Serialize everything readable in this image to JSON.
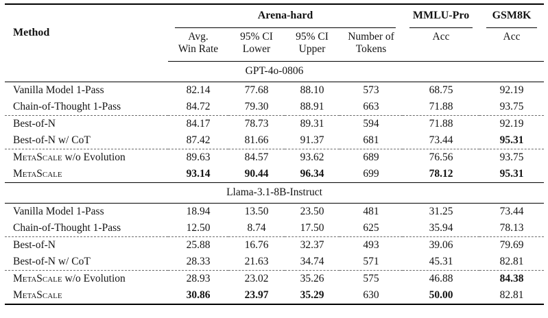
{
  "table": {
    "header": {
      "method_label": "Method",
      "groups": [
        {
          "label": "Arena-hard",
          "colspan": 4
        },
        {
          "label": "MMLU-Pro",
          "colspan": 1
        },
        {
          "label": "GSM8K",
          "colspan": 1
        }
      ],
      "subcols": [
        {
          "line1": "Avg.",
          "line2": "Win Rate"
        },
        {
          "line1": "95% CI",
          "line2": "Lower"
        },
        {
          "line1": "95% CI",
          "line2": "Upper"
        },
        {
          "line1": "Number of",
          "line2": "Tokens"
        },
        {
          "line1": "Acc",
          "line2": ""
        },
        {
          "line1": "Acc",
          "line2": ""
        }
      ]
    },
    "sections": [
      {
        "title": "GPT-4o-0806",
        "rows": [
          {
            "method": [
              {
                "t": "Vanilla Model 1-Pass"
              }
            ],
            "cells": [
              {
                "v": "82.14"
              },
              {
                "v": "77.68"
              },
              {
                "v": "88.10"
              },
              {
                "v": "573"
              },
              {
                "v": "68.75"
              },
              {
                "v": "92.19"
              }
            ]
          },
          {
            "method": [
              {
                "t": "Chain-of-Thought 1-Pass"
              }
            ],
            "dash_below": true,
            "cells": [
              {
                "v": "84.72"
              },
              {
                "v": "79.30"
              },
              {
                "v": "88.91"
              },
              {
                "v": "663"
              },
              {
                "v": "71.88"
              },
              {
                "v": "93.75"
              }
            ]
          },
          {
            "method": [
              {
                "t": "Best-of-N"
              }
            ],
            "cells": [
              {
                "v": "84.17"
              },
              {
                "v": "78.73"
              },
              {
                "v": "89.31"
              },
              {
                "v": "594"
              },
              {
                "v": "71.88"
              },
              {
                "v": "92.19"
              }
            ]
          },
          {
            "method": [
              {
                "t": "Best-of-N w/ CoT"
              }
            ],
            "dash_below": true,
            "cells": [
              {
                "v": "87.42"
              },
              {
                "v": "81.66"
              },
              {
                "v": "91.37"
              },
              {
                "v": "681"
              },
              {
                "v": "73.44"
              },
              {
                "v": "95.31",
                "b": true
              }
            ]
          },
          {
            "method": [
              {
                "t": "MetaScale",
                "sc": true
              },
              {
                "t": " w/o Evolution"
              }
            ],
            "cells": [
              {
                "v": "89.63"
              },
              {
                "v": "84.57"
              },
              {
                "v": "93.62"
              },
              {
                "v": "689"
              },
              {
                "v": "76.56"
              },
              {
                "v": "93.75"
              }
            ]
          },
          {
            "method": [
              {
                "t": "MetaScale",
                "sc": true
              }
            ],
            "strong_below": true,
            "cells": [
              {
                "v": "93.14",
                "b": true
              },
              {
                "v": "90.44",
                "b": true
              },
              {
                "v": "96.34",
                "b": true
              },
              {
                "v": "699"
              },
              {
                "v": "78.12",
                "b": true
              },
              {
                "v": "95.31",
                "b": true
              }
            ]
          }
        ]
      },
      {
        "title": "Llama-3.1-8B-Instruct",
        "rows": [
          {
            "method": [
              {
                "t": "Vanilla Model 1-Pass"
              }
            ],
            "cells": [
              {
                "v": "18.94"
              },
              {
                "v": "13.50"
              },
              {
                "v": "23.50"
              },
              {
                "v": "481"
              },
              {
                "v": "31.25"
              },
              {
                "v": "73.44"
              }
            ]
          },
          {
            "method": [
              {
                "t": "Chain-of-Thought 1-Pass"
              }
            ],
            "dash_below": true,
            "cells": [
              {
                "v": "12.50"
              },
              {
                "v": "8.74"
              },
              {
                "v": "17.50"
              },
              {
                "v": "625"
              },
              {
                "v": "35.94"
              },
              {
                "v": "78.13"
              }
            ]
          },
          {
            "method": [
              {
                "t": "Best-of-N"
              }
            ],
            "cells": [
              {
                "v": "25.88"
              },
              {
                "v": "16.76"
              },
              {
                "v": "32.37"
              },
              {
                "v": "493"
              },
              {
                "v": "39.06"
              },
              {
                "v": "79.69"
              }
            ]
          },
          {
            "method": [
              {
                "t": "Best-of-N w/ CoT"
              }
            ],
            "dash_below": true,
            "cells": [
              {
                "v": "28.33"
              },
              {
                "v": "21.63"
              },
              {
                "v": "34.74"
              },
              {
                "v": "571"
              },
              {
                "v": "45.31"
              },
              {
                "v": "82.81"
              }
            ]
          },
          {
            "method": [
              {
                "t": "MetaScale",
                "sc": true
              },
              {
                "t": " w/o Evolution"
              }
            ],
            "cells": [
              {
                "v": "28.93"
              },
              {
                "v": "23.02"
              },
              {
                "v": "35.26"
              },
              {
                "v": "575"
              },
              {
                "v": "46.88"
              },
              {
                "v": "84.38",
                "b": true
              }
            ]
          },
          {
            "method": [
              {
                "t": "MetaScale",
                "sc": true
              }
            ],
            "cells": [
              {
                "v": "30.86",
                "b": true
              },
              {
                "v": "23.97",
                "b": true
              },
              {
                "v": "35.29",
                "b": true
              },
              {
                "v": "630"
              },
              {
                "v": "50.00",
                "b": true
              },
              {
                "v": "82.81"
              }
            ]
          }
        ]
      }
    ],
    "colors": {
      "rule": "#000000",
      "dashed_rule": "#6b6b6b",
      "text": "#131313",
      "background": "#ffffff"
    }
  }
}
